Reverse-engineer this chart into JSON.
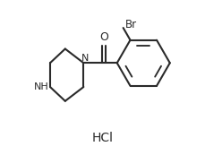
{
  "background_color": "#ffffff",
  "line_color": "#2a2a2a",
  "line_width": 1.5,
  "text_color": "#2a2a2a",
  "hcl_text": "HCl",
  "n_label": "N",
  "nh_label": "NH",
  "o_label": "O",
  "br_label": "Br",
  "figsize": [
    2.3,
    1.73
  ],
  "dpi": 100
}
